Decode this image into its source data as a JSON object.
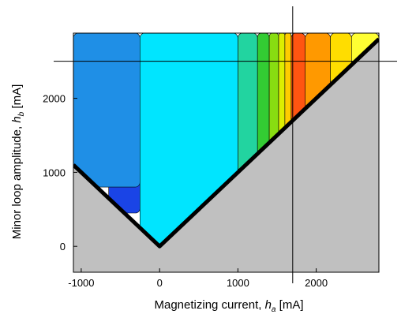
{
  "chart_data": {
    "type": "heatmap",
    "title": "",
    "xlabel": {
      "prefix": "Magnetizing current, ",
      "symbol": "h",
      "subscript": "a",
      "suffix": " [mA]"
    },
    "ylabel": {
      "prefix": "Minor loop amplitude, ",
      "symbol": "h",
      "subscript": "b",
      "suffix": " [mA]"
    },
    "xlim": [
      -1100,
      2800
    ],
    "ylim": [
      -350,
      2880
    ],
    "xticks": [
      -1000,
      0,
      1000,
      2000
    ],
    "yticks": [
      0,
      1000,
      2000
    ],
    "x_tick_labels": [
      "-1000",
      "0",
      "1000",
      "2000"
    ],
    "y_tick_labels": [
      "0",
      "1000",
      "2000"
    ],
    "colorbar": "none",
    "masked_region": {
      "description_values": "h_b < |h_a|",
      "color": "#c0c0c0"
    },
    "crosshair": {
      "x": 1700,
      "y": 2500
    },
    "contour_bands": [
      {
        "level": 1,
        "color": "#1a44e6",
        "x_range": [
          -650,
          -250
        ],
        "y_range": [
          450,
          1150
        ]
      },
      {
        "level": 2,
        "color": "#1f8fe6",
        "x_range": [
          -1100,
          -250
        ],
        "y_range": [
          800,
          2880
        ]
      },
      {
        "level": 3,
        "color": "#00e5ff",
        "x_range": [
          -250,
          1000
        ],
        "y_range": [
          0,
          2880
        ]
      },
      {
        "level": 4,
        "color": "#22d4a0",
        "x_range": [
          1000,
          1250
        ],
        "y_range": [
          1000,
          2880
        ]
      },
      {
        "level": 5,
        "color": "#33cc33",
        "x_range": [
          1250,
          1400
        ],
        "y_range": [
          1250,
          2880
        ]
      },
      {
        "level": 6,
        "color": "#88dd11",
        "x_range": [
          1400,
          1520
        ],
        "y_range": [
          1400,
          2880
        ]
      },
      {
        "level": 7,
        "color": "#ddee00",
        "x_range": [
          1520,
          1600
        ],
        "y_range": [
          1520,
          2880
        ]
      },
      {
        "level": 8,
        "color": "#ffcc00",
        "x_range": [
          1600,
          1680
        ],
        "y_range": [
          1600,
          2880
        ]
      },
      {
        "level": 9,
        "color": "#ff5511",
        "x_range": [
          1680,
          1860
        ],
        "y_range": [
          1680,
          2880
        ]
      },
      {
        "level": 10,
        "color": "#ff9900",
        "x_range": [
          1860,
          2180
        ],
        "y_range": [
          1860,
          2880
        ]
      },
      {
        "level": 11,
        "color": "#ffdd00",
        "x_range": [
          2180,
          2450
        ],
        "y_range": [
          2180,
          2880
        ]
      },
      {
        "level": 12,
        "color": "#ffff33",
        "x_range": [
          2450,
          2800
        ],
        "y_range": [
          2450,
          2880
        ]
      }
    ]
  }
}
